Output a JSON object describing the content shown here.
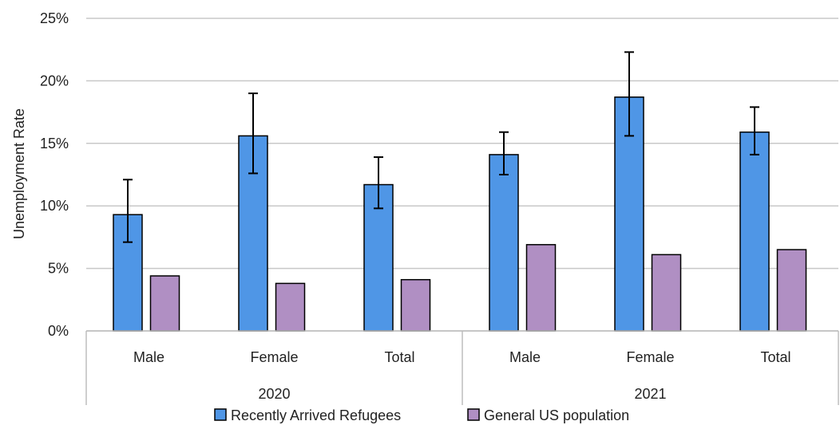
{
  "chart_data": {
    "type": "bar",
    "ylabel": "Unemployment Rate",
    "y_tick_labels": [
      "0%",
      "5%",
      "10%",
      "15%",
      "20%",
      "25%"
    ],
    "ylim": [
      0,
      25
    ],
    "grid": true,
    "legend_position": "bottom",
    "groups": [
      "2020",
      "2021"
    ],
    "categories": [
      "Male",
      "Female",
      "Total",
      "Male",
      "Female",
      "Total"
    ],
    "category_group": [
      0,
      0,
      0,
      1,
      1,
      1
    ],
    "series": [
      {
        "name": "Recently Arrived Refugees",
        "color": "#4f96e6",
        "values": [
          9.3,
          15.6,
          11.7,
          14.1,
          18.7,
          15.9
        ],
        "error_low": [
          7.1,
          12.6,
          9.8,
          12.5,
          15.6,
          14.1
        ],
        "error_high": [
          12.1,
          19.0,
          13.9,
          15.9,
          22.3,
          17.9
        ]
      },
      {
        "name": "General US population",
        "color": "#b08fc3",
        "values": [
          4.4,
          3.8,
          4.1,
          6.9,
          6.1,
          6.5
        ]
      }
    ]
  }
}
